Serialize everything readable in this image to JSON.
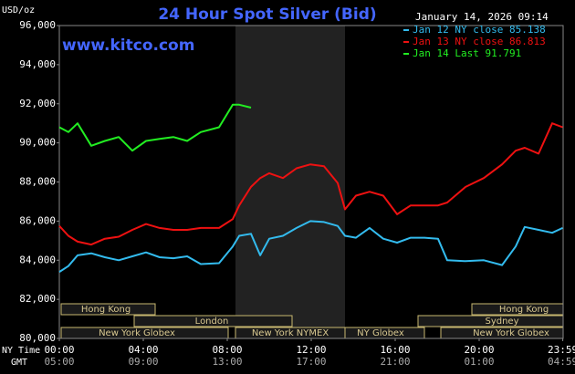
{
  "chart_data": {
    "type": "line",
    "title": "24 Hour Spot Silver (Bid)",
    "website": "www.kitco.com",
    "timestamp": "January 14, 2026 09:14",
    "y_unit": "USD/oz",
    "x_row_labels": [
      "NY Time",
      "GMT"
    ],
    "x": [
      0,
      0.43,
      0.87,
      1.52,
      2.17,
      2.83,
      3.48,
      4.13,
      4.78,
      5.43,
      6.09,
      6.74,
      7.61,
      8.26,
      8.57,
      9.13,
      9.57,
      10,
      10.65,
      11.3,
      11.96,
      12.61,
      13.26,
      13.61,
      14.13,
      14.78,
      15.43,
      16.09,
      16.74,
      17.39,
      18.04,
      18.48,
      19.35,
      20.22,
      21.09,
      21.74,
      22.17,
      22.83,
      23.48,
      23.98
    ],
    "series": [
      {
        "name": "Jan 12 NY close 85.138",
        "color": "#33bbee",
        "values": [
          83400,
          83700,
          84250,
          84350,
          84150,
          84000,
          84200,
          84400,
          84150,
          84100,
          84200,
          83800,
          83850,
          84700,
          85250,
          85350,
          84250,
          85100,
          85250,
          85650,
          86000,
          85950,
          85750,
          85250,
          85150,
          85650,
          85100,
          84900,
          85150,
          85150,
          85100,
          84000,
          83950,
          84000,
          83750,
          84700,
          85700,
          85550,
          85400,
          85650
        ]
      },
      {
        "name": "Jan 13 NY close 86.813",
        "color": "#ee1111",
        "values": [
          85750,
          85250,
          84950,
          84800,
          85100,
          85200,
          85550,
          85850,
          85650,
          85550,
          85550,
          85650,
          85650,
          86100,
          86800,
          87750,
          88200,
          88450,
          88200,
          88700,
          88900,
          88800,
          87950,
          86600,
          87300,
          87500,
          87300,
          86350,
          86800,
          86800,
          86800,
          86950,
          87750,
          88200,
          88900,
          89600,
          89750,
          89450,
          91000,
          90800
        ]
      },
      {
        "name": "Jan 14 Last 91.791",
        "color": "#22ee22",
        "values": [
          90800,
          90550,
          91000,
          89850,
          90100,
          90300,
          89600,
          90100,
          90200,
          90300,
          90100,
          90550,
          90800,
          91950,
          91950,
          91800,
          null,
          null,
          null,
          null,
          null,
          null,
          null,
          null,
          null,
          null,
          null,
          null,
          null,
          null,
          null,
          null,
          null,
          null,
          null,
          null,
          null,
          null,
          null,
          null
        ]
      }
    ],
    "xlim": [
      0,
      24
    ],
    "xticks": [
      {
        "value": 0,
        "label": "00:00"
      },
      {
        "value": 4,
        "label": "04:00"
      },
      {
        "value": 8,
        "label": "08:00"
      },
      {
        "value": 12,
        "label": "12:00"
      },
      {
        "value": 16,
        "label": "16:00"
      },
      {
        "value": 20,
        "label": "20:00"
      },
      {
        "value": 23.983,
        "label": "23:59"
      }
    ],
    "xticks_gmt": [
      "05:00",
      "09:00",
      "13:00",
      "17:00",
      "21:00",
      "01:00",
      "04:59"
    ],
    "ylim": [
      80000,
      96000
    ],
    "yticks": [
      {
        "value": 80000,
        "label": "80,000"
      },
      {
        "value": 82000,
        "label": "82,000"
      },
      {
        "value": 84000,
        "label": "84,000"
      },
      {
        "value": 86000,
        "label": "86,000"
      },
      {
        "value": 88000,
        "label": "88,000"
      },
      {
        "value": 90000,
        "label": "90,000"
      },
      {
        "value": 92000,
        "label": "92,000"
      },
      {
        "value": 94000,
        "label": "94,000"
      },
      {
        "value": 96000,
        "label": "96,000"
      }
    ],
    "grid": false,
    "sessions": [
      "Hong Kong",
      "London",
      "New York Globex",
      "New York NYMEX",
      "NY Globex",
      "Sydney",
      "Hong Kong",
      "New York Globex"
    ]
  }
}
